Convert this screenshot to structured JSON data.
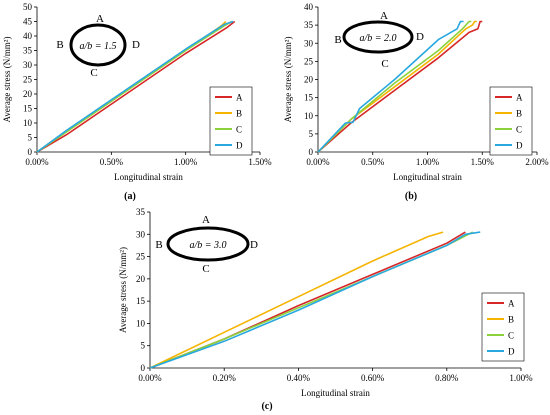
{
  "colors": {
    "A": "#d62728",
    "B": "#f5b400",
    "C": "#8bd13b",
    "D": "#29a8e0"
  },
  "chart_data": [
    {
      "type": "line",
      "panel_label": "(a)",
      "xlabel": "Longitudinal strain",
      "ylabel": "Average stress (N/mm²)",
      "xlim": [
        0,
        0.015
      ],
      "ylim": [
        0,
        50
      ],
      "xticks": [
        "0.00%",
        "0.50%",
        "1.00%",
        "1.50%"
      ],
      "yticks": [
        "0",
        "5",
        "10",
        "15",
        "20",
        "25",
        "30",
        "35",
        "40",
        "45",
        "50"
      ],
      "inset": {
        "ratio_text": "a/b = 1.5",
        "top": "A",
        "left": "B",
        "right": "D",
        "bottom": "C"
      },
      "legend_position": "bottom-right",
      "series": [
        {
          "name": "A",
          "x": [
            0,
            0.002,
            0.006,
            0.01,
            0.0128,
            0.0133
          ],
          "y": [
            0,
            6,
            20,
            34,
            43,
            45
          ]
        },
        {
          "name": "B",
          "x": [
            0,
            0.002,
            0.006,
            0.01,
            0.0124,
            0.0127
          ],
          "y": [
            0,
            7,
            21,
            35,
            43.5,
            45
          ]
        },
        {
          "name": "C",
          "x": [
            0,
            0.002,
            0.006,
            0.01,
            0.0126,
            0.0131
          ],
          "y": [
            0,
            7,
            21,
            35,
            43.5,
            45
          ]
        },
        {
          "name": "D",
          "x": [
            0,
            0.002,
            0.006,
            0.01,
            0.0126,
            0.0132
          ],
          "y": [
            0,
            7.5,
            21.5,
            35.5,
            44,
            45
          ]
        }
      ]
    },
    {
      "type": "line",
      "panel_label": "(b)",
      "xlabel": "Longitudinal strain",
      "ylabel": "Average stress (N/mm²)",
      "xlim": [
        0,
        0.02
      ],
      "ylim": [
        0,
        40
      ],
      "xticks": [
        "0.00%",
        "0.50%",
        "1.00%",
        "1.50%",
        "2.00%"
      ],
      "yticks": [
        "0",
        "5",
        "10",
        "15",
        "20",
        "25",
        "30",
        "35",
        "40"
      ],
      "inset": {
        "ratio_text": "a/b = 2.0",
        "top": "A",
        "left": "B",
        "right": "D",
        "bottom": "C"
      },
      "legend_position": "bottom-right",
      "series": [
        {
          "name": "A",
          "x": [
            0,
            0.003,
            0.007,
            0.011,
            0.0138,
            0.0146,
            0.0148,
            0.015
          ],
          "y": [
            0,
            8,
            17,
            26,
            33,
            34,
            36,
            36
          ]
        },
        {
          "name": "B",
          "x": [
            0,
            0.003,
            0.007,
            0.011,
            0.0135,
            0.0141,
            0.0143,
            0.0145
          ],
          "y": [
            0,
            9,
            18,
            27,
            34,
            35,
            36,
            36
          ]
        },
        {
          "name": "C",
          "x": [
            0,
            0.003,
            0.007,
            0.011,
            0.0132,
            0.0138,
            0.014
          ],
          "y": [
            0,
            9,
            19,
            28,
            34,
            36,
            36
          ]
        },
        {
          "name": "D",
          "x": [
            0,
            0.0025,
            0.0032,
            0.0038,
            0.007,
            0.011,
            0.0127,
            0.013,
            0.0133
          ],
          "y": [
            0,
            8,
            8.2,
            12,
            20,
            31,
            34,
            36,
            36
          ]
        }
      ]
    },
    {
      "type": "line",
      "panel_label": "(c)",
      "xlabel": "Longitudinal strain",
      "ylabel": "Average stress (N/mm²)",
      "xlim": [
        0,
        0.01
      ],
      "ylim": [
        0,
        35
      ],
      "xticks": [
        "0.00%",
        "0.20%",
        "0.40%",
        "0.60%",
        "0.80%",
        "1.00%"
      ],
      "yticks": [
        "0",
        "5",
        "10",
        "15",
        "20",
        "25",
        "30",
        "35"
      ],
      "inset": {
        "ratio_text": "a/b = 3.0",
        "top": "A",
        "left": "B",
        "right": "D",
        "bottom": "C"
      },
      "legend_position": "bottom-right",
      "series": [
        {
          "name": "A",
          "x": [
            0,
            0.002,
            0.004,
            0.006,
            0.008,
            0.0085
          ],
          "y": [
            0,
            6.5,
            14,
            21,
            28,
            30.5
          ]
        },
        {
          "name": "B",
          "x": [
            0,
            0.002,
            0.004,
            0.006,
            0.0075,
            0.0079
          ],
          "y": [
            0,
            8,
            16,
            24,
            29.5,
            30.5
          ]
        },
        {
          "name": "C",
          "x": [
            0,
            0.002,
            0.004,
            0.006,
            0.008,
            0.0087
          ],
          "y": [
            0,
            6.5,
            13.5,
            20.5,
            27.5,
            30.5
          ]
        },
        {
          "name": "D",
          "x": [
            0,
            0.002,
            0.004,
            0.006,
            0.008,
            0.0085,
            0.0089
          ],
          "y": [
            0,
            6,
            13,
            20.5,
            27.5,
            30,
            30.5
          ]
        }
      ]
    }
  ]
}
